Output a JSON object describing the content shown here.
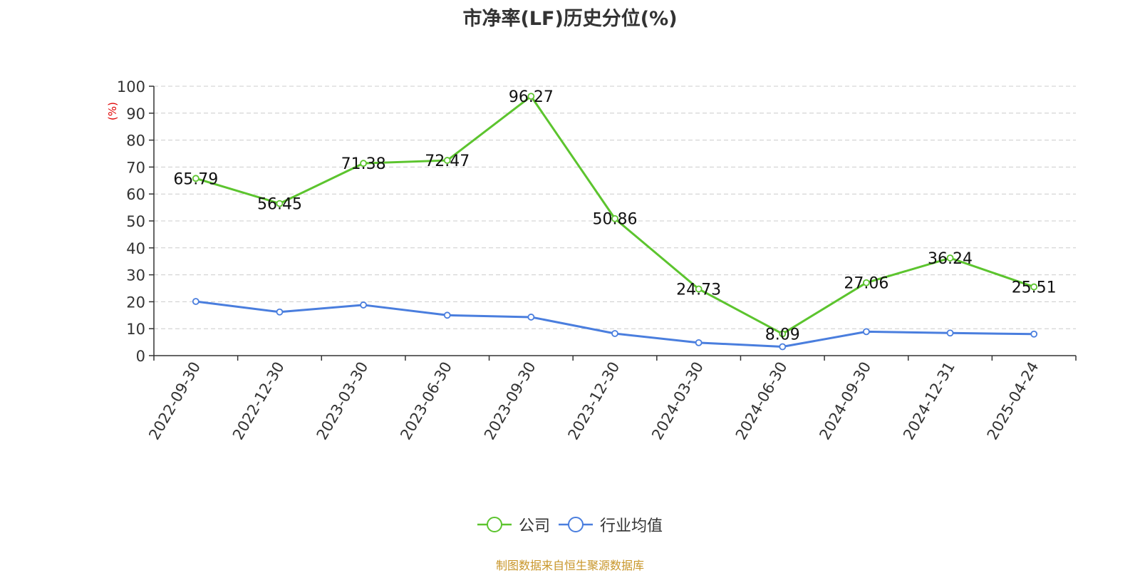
{
  "chart_data": {
    "type": "line",
    "title": "市净率(LF)历史分位(%)",
    "ylabel": "(%)",
    "ylim": [
      0,
      100
    ],
    "yticks": [
      0,
      10,
      20,
      30,
      40,
      50,
      60,
      70,
      80,
      90,
      100
    ],
    "grid": true,
    "legend_position": "bottom",
    "categories": [
      "2022-09-30",
      "2022-12-30",
      "2023-03-30",
      "2023-06-30",
      "2023-09-30",
      "2023-12-30",
      "2024-03-30",
      "2024-06-30",
      "2024-09-30",
      "2024-12-31",
      "2025-04-24"
    ],
    "series": [
      {
        "name": "公司",
        "color": "#5cc42e",
        "values": [
          65.79,
          56.45,
          71.38,
          72.47,
          96.27,
          50.86,
          24.73,
          8.09,
          27.06,
          36.24,
          25.51
        ],
        "labels": [
          "65.79",
          "56.45",
          "71.38",
          "72.47",
          "96.27",
          "50.86",
          "24.73",
          "8.09",
          "27.06",
          "36.24",
          "25.51"
        ]
      },
      {
        "name": "行业均值",
        "color": "#4a7ede",
        "values": [
          20.1,
          16.2,
          18.8,
          15.0,
          14.3,
          8.2,
          4.8,
          3.3,
          8.9,
          8.4,
          8.0
        ]
      }
    ]
  },
  "source_note": "制图数据来自恒生聚源数据库"
}
